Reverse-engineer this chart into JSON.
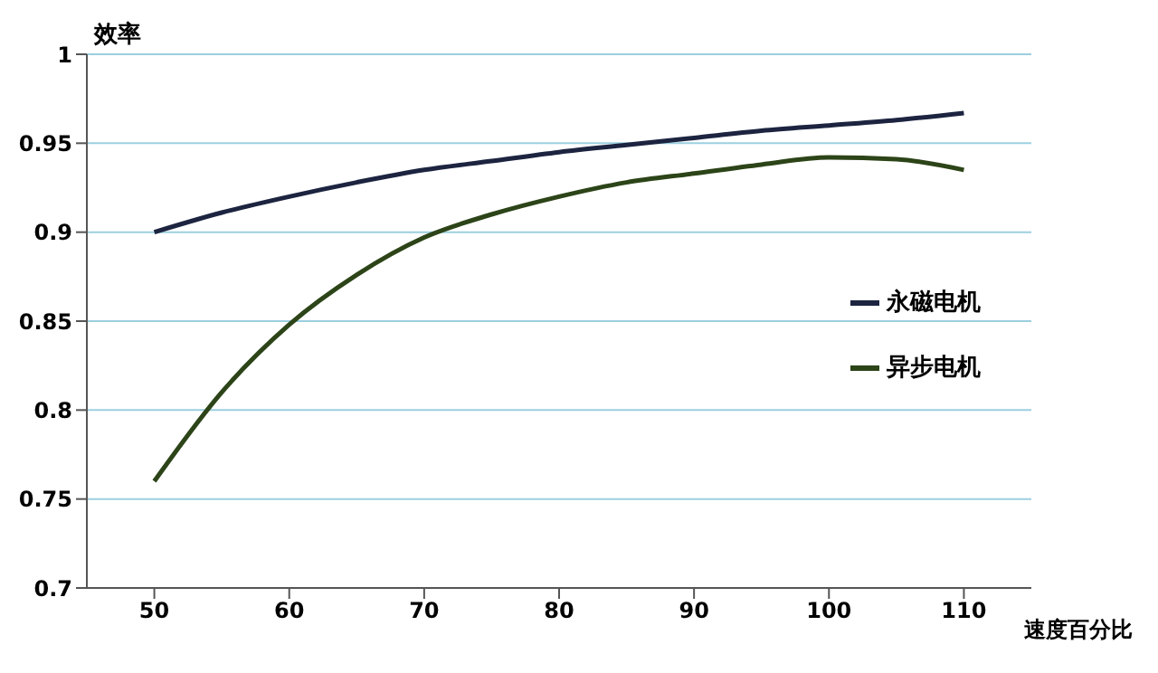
{
  "chart_data": {
    "type": "line",
    "ylabel": "效率",
    "xlabel": "速度百分比",
    "x": [
      50,
      55,
      60,
      65,
      70,
      75,
      80,
      85,
      90,
      95,
      100,
      105,
      110
    ],
    "series": [
      {
        "name": "永磁电机",
        "color": "#1c2440",
        "values": [
          0.9,
          0.911,
          0.92,
          0.928,
          0.935,
          0.94,
          0.945,
          0.949,
          0.953,
          0.957,
          0.96,
          0.963,
          0.967
        ]
      },
      {
        "name": "异步电机",
        "color": "#2c4418",
        "values": [
          0.76,
          0.81,
          0.848,
          0.876,
          0.897,
          0.91,
          0.92,
          0.928,
          0.933,
          0.938,
          0.942,
          0.941,
          0.935
        ]
      }
    ],
    "xlim": [
      45,
      115
    ],
    "xticks": [
      50,
      60,
      70,
      80,
      90,
      100,
      110
    ],
    "ylim": [
      0.7,
      1
    ],
    "yticks": [
      0.7,
      0.75,
      0.8,
      0.85,
      0.9,
      0.95,
      1
    ],
    "grid": "y",
    "legend": "right",
    "marker": "none",
    "line_style": "solid"
  }
}
